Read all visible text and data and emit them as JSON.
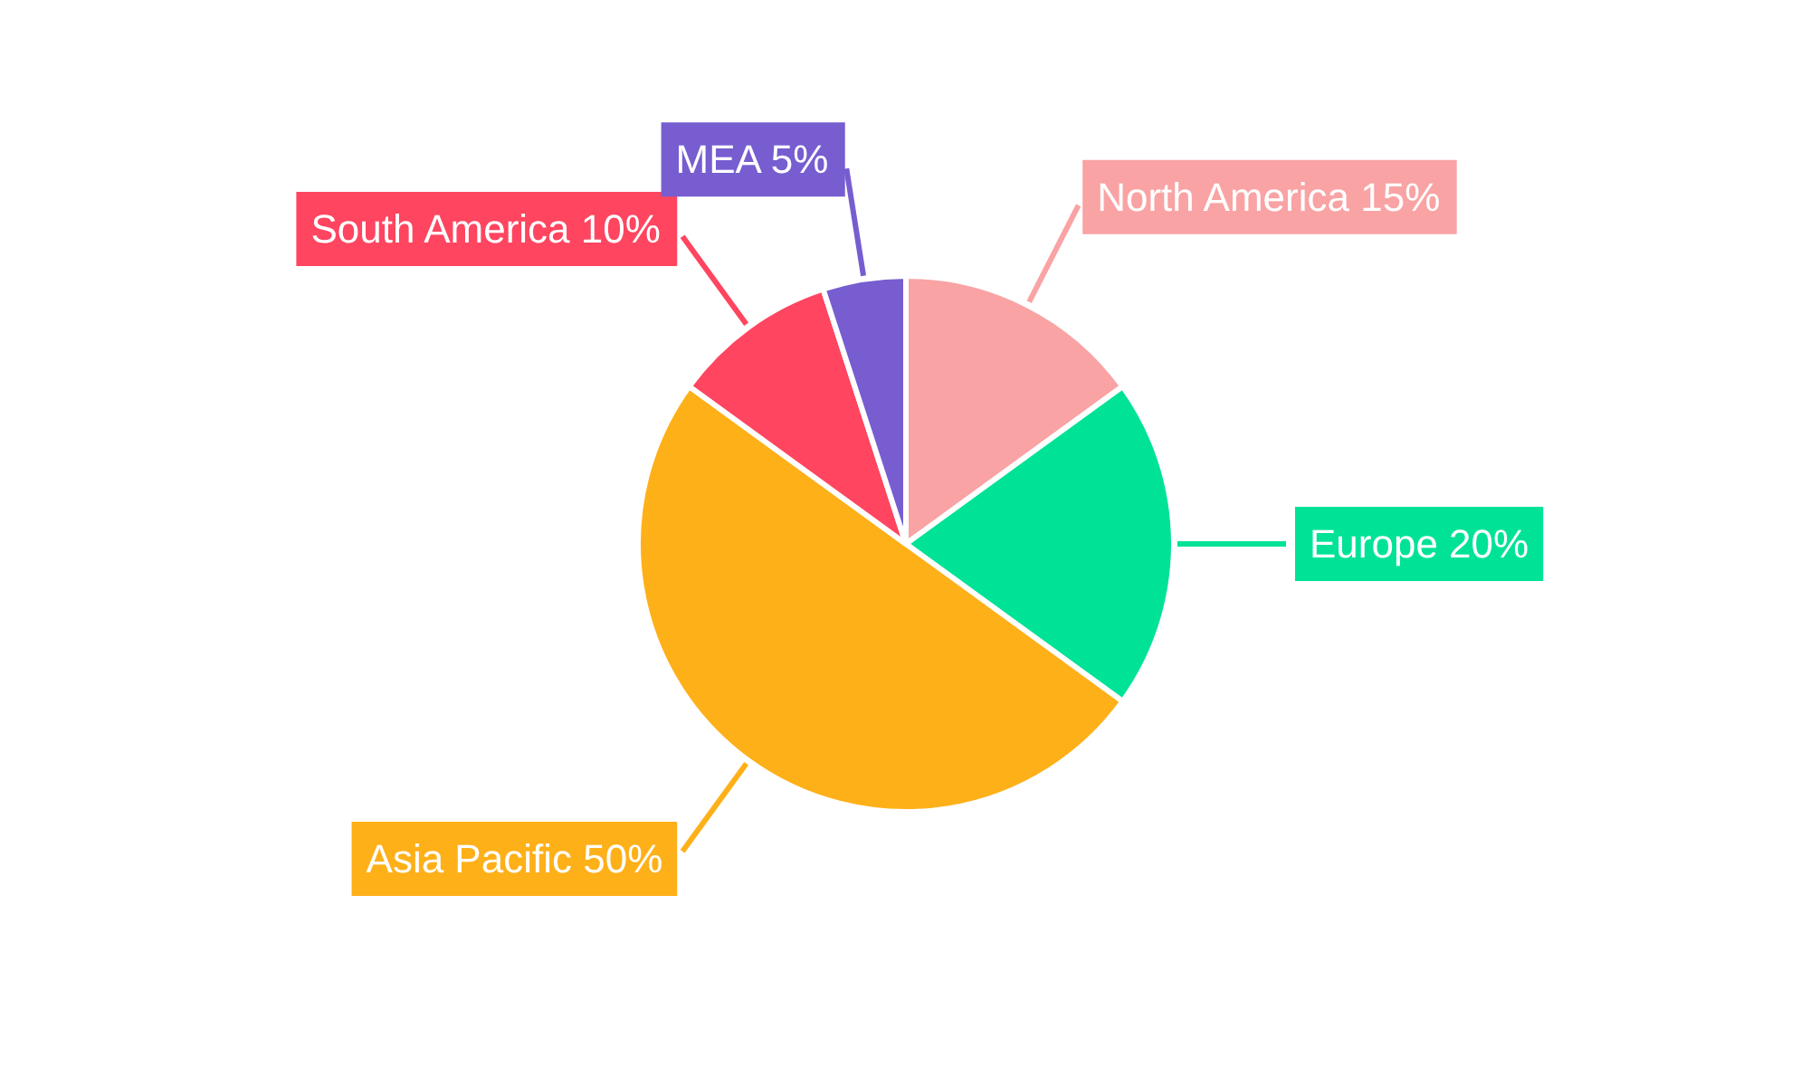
{
  "chart_data": {
    "type": "pie",
    "categories": [
      "North America",
      "Europe",
      "Asia Pacific",
      "South America",
      "MEA"
    ],
    "values": [
      15,
      20,
      50,
      10,
      5
    ],
    "value_labels": [
      "15%",
      "20%",
      "50%",
      "10%",
      "5%"
    ],
    "colors": [
      "#f9a3a4",
      "#00e396",
      "#feb019",
      "#ff4560",
      "#775dd0"
    ]
  }
}
